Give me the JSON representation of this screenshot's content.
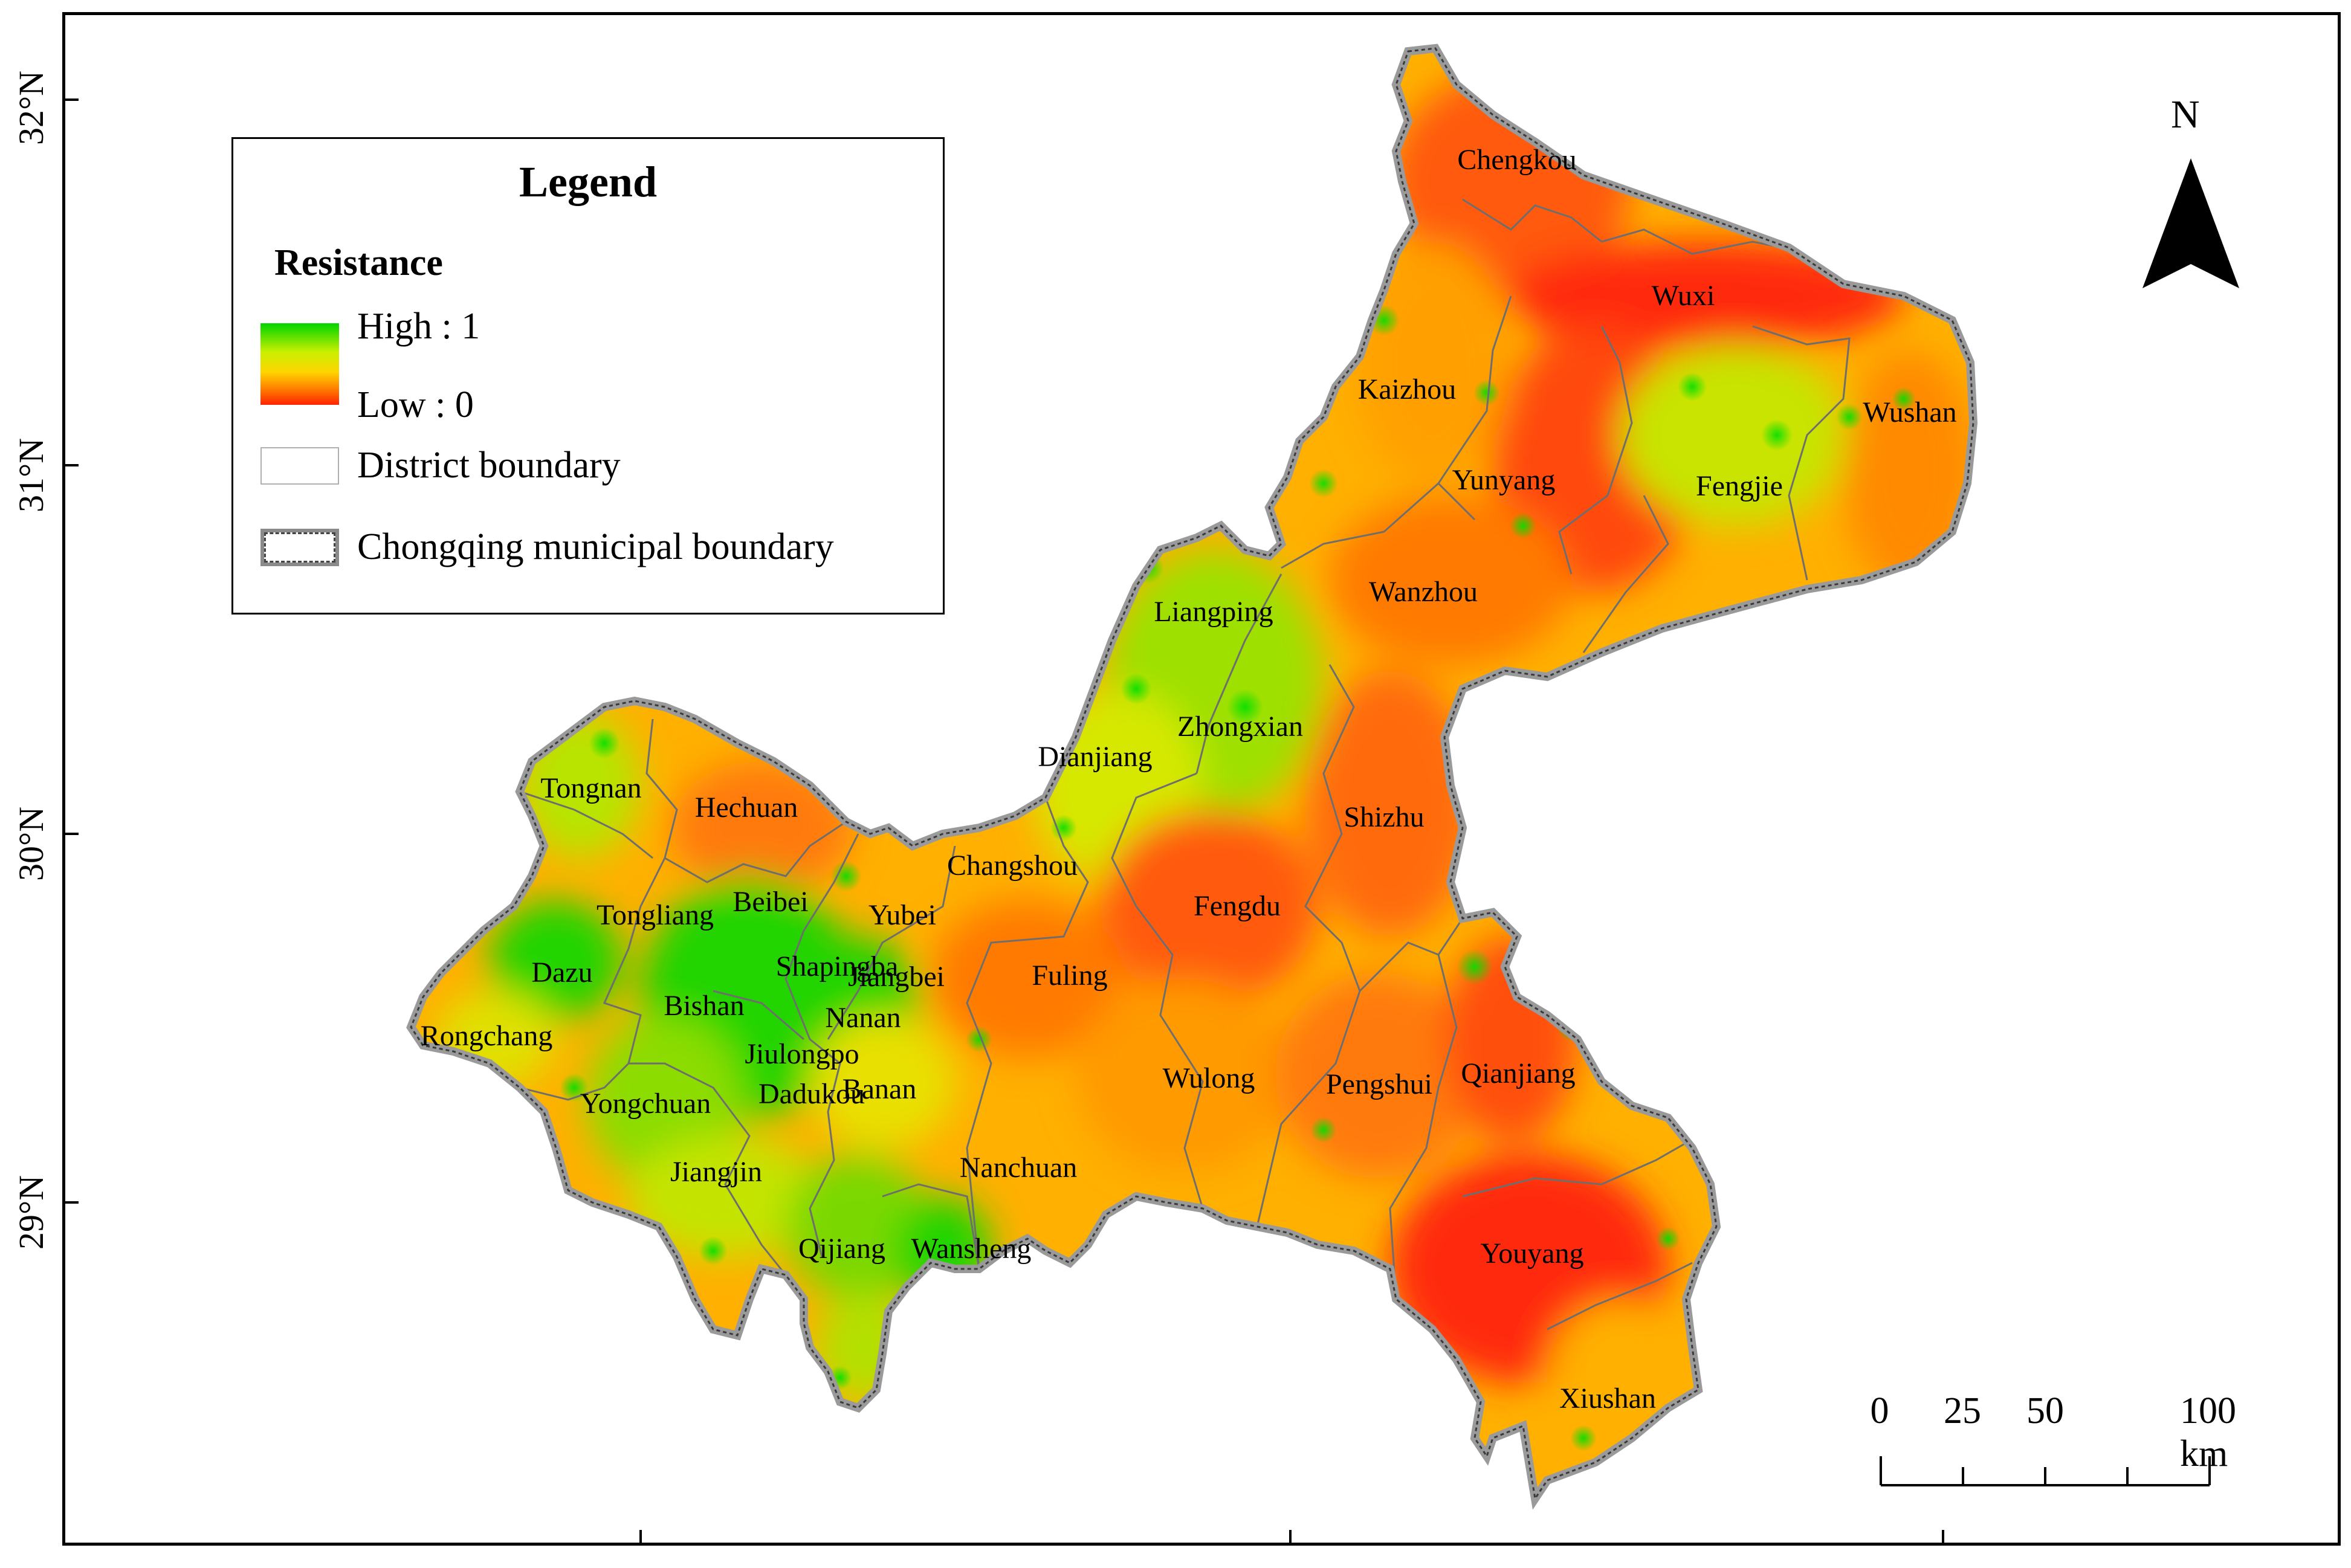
{
  "map": {
    "latitude_labels": [
      "32°N",
      "31°N",
      "30°N",
      "29°N"
    ]
  },
  "legend": {
    "title": "Legend",
    "subtitle": "Resistance",
    "high_label": "High : 1",
    "low_label": "Low : 0",
    "district_label": "District boundary",
    "municipal_label": "Chongqing municipal boundary",
    "gradient_colors": [
      "#00d400",
      "#c8f000",
      "#ffd400",
      "#ff6a00",
      "#ff2200"
    ]
  },
  "north": {
    "label": "N"
  },
  "scale": {
    "ticks": [
      "0",
      "25",
      "50",
      "100 km"
    ]
  },
  "districts": [
    "Chengkou",
    "Wuxi",
    "Kaizhou",
    "Wushan",
    "Yunyang",
    "Fengjie",
    "Wanzhou",
    "Liangping",
    "Zhongxian",
    "Dianjiang",
    "Shizhu",
    "Tongnan",
    "Hechuan",
    "Changshou",
    "Tongliang",
    "Beibei",
    "Yubei",
    "Fengdu",
    "Dazu",
    "Shapingba",
    "Jiangbei",
    "Bishan",
    "Nanan",
    "Fuling",
    "Rongchang",
    "Jiulongpo",
    "Banan",
    "Wulong",
    "Pengshui",
    "Qianjiang",
    "Yongchuan",
    "Dadukou",
    "Jiangjin",
    "Nanchuan",
    "Qijiang",
    "Wansheng",
    "Youyang",
    "Xiushan"
  ],
  "colors": {
    "high": "#00d400",
    "mid": "#ffd400",
    "low": "#ff2200",
    "boundary": "#8a8a8a"
  }
}
